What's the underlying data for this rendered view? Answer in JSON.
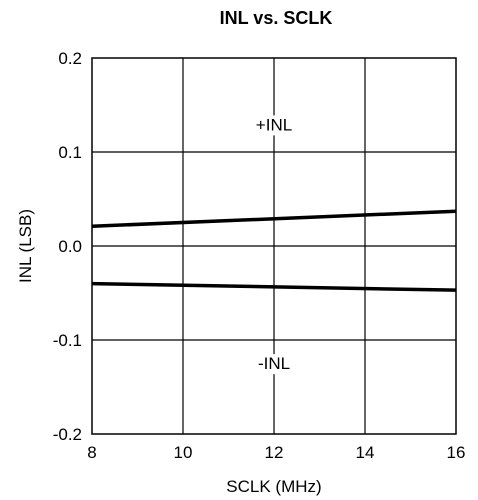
{
  "chart_data": {
    "type": "line",
    "title": "INL vs. SCLK",
    "xlabel": "SCLK  (MHz)",
    "ylabel": "INL (LSB)",
    "xlim": [
      8,
      16
    ],
    "ylim": [
      -0.2,
      0.2
    ],
    "x_ticks": [
      8,
      10,
      12,
      14,
      16
    ],
    "y_ticks": [
      -0.2,
      -0.1,
      0.0,
      0.1,
      0.2
    ],
    "x_tick_labels": [
      "8",
      "10",
      "12",
      "14",
      "16"
    ],
    "y_tick_labels": [
      "-0.2",
      "-0.1",
      "0.0",
      "0.1",
      "0.2"
    ],
    "grid": true,
    "series": [
      {
        "name": "+INL",
        "x": [
          8,
          16
        ],
        "y": [
          0.021,
          0.037
        ]
      },
      {
        "name": "-INL",
        "x": [
          8,
          16
        ],
        "y": [
          -0.04,
          -0.047
        ]
      }
    ],
    "annotations": [
      {
        "text": "+INL",
        "x": 12,
        "y": 0.123
      },
      {
        "text": "-INL",
        "x": 12,
        "y": -0.131
      }
    ],
    "line_color": "#000000"
  }
}
